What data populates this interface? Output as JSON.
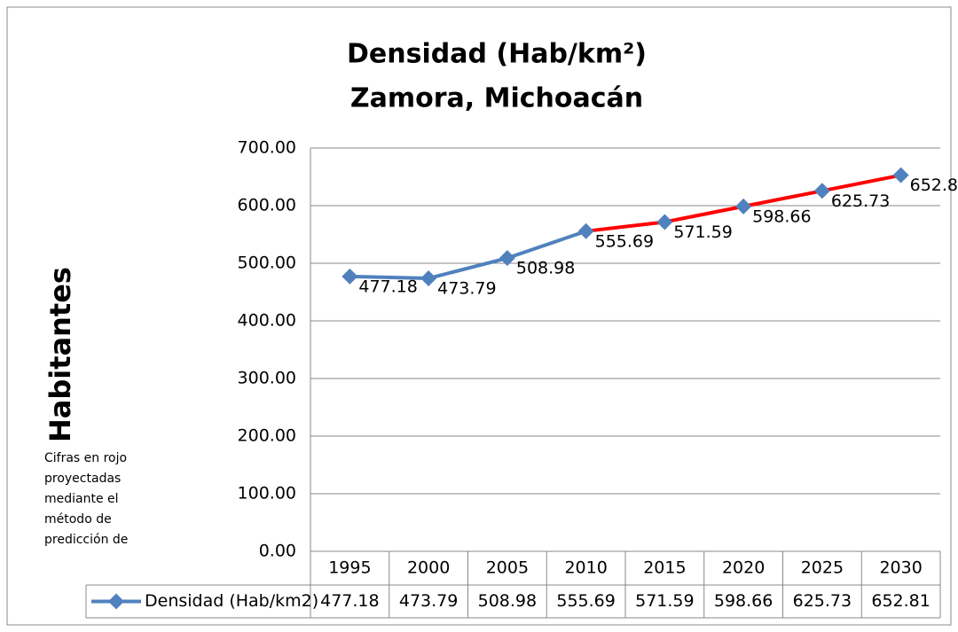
{
  "chart_data": {
    "type": "line",
    "title": [
      "Densidad (Hab/km²)",
      "Zamora, Michoacán"
    ],
    "y_label": "Habitantes",
    "note": [
      "Cifras en rojo",
      "proyectadas",
      "mediante el",
      "método de",
      "predicción de"
    ],
    "categories": [
      "1995",
      "2000",
      "2005",
      "2010",
      "2015",
      "2020",
      "2025",
      "2030"
    ],
    "series": [
      {
        "name": "Densidad (Hab/km2)",
        "color": "#4f81bd",
        "values": [
          477.18,
          473.79,
          508.98,
          555.69,
          571.59,
          598.66,
          625.73,
          652.81
        ],
        "projected": [
          false,
          false,
          false,
          false,
          true,
          true,
          true,
          true
        ],
        "projected_color": "#ff0000"
      }
    ],
    "ylim": [
      0,
      700
    ],
    "yticks": [
      {
        "value": 0,
        "label": "0.00"
      },
      {
        "value": 100,
        "label": "100.00"
      },
      {
        "value": 200,
        "label": "200.00"
      },
      {
        "value": 300,
        "label": "300.00"
      },
      {
        "value": 400,
        "label": "400.00"
      },
      {
        "value": 500,
        "label": "500.00"
      },
      {
        "value": 600,
        "label": "600.00"
      },
      {
        "value": 700,
        "label": "700.00"
      }
    ],
    "grid": true,
    "data_labels": true,
    "data_table": true
  }
}
